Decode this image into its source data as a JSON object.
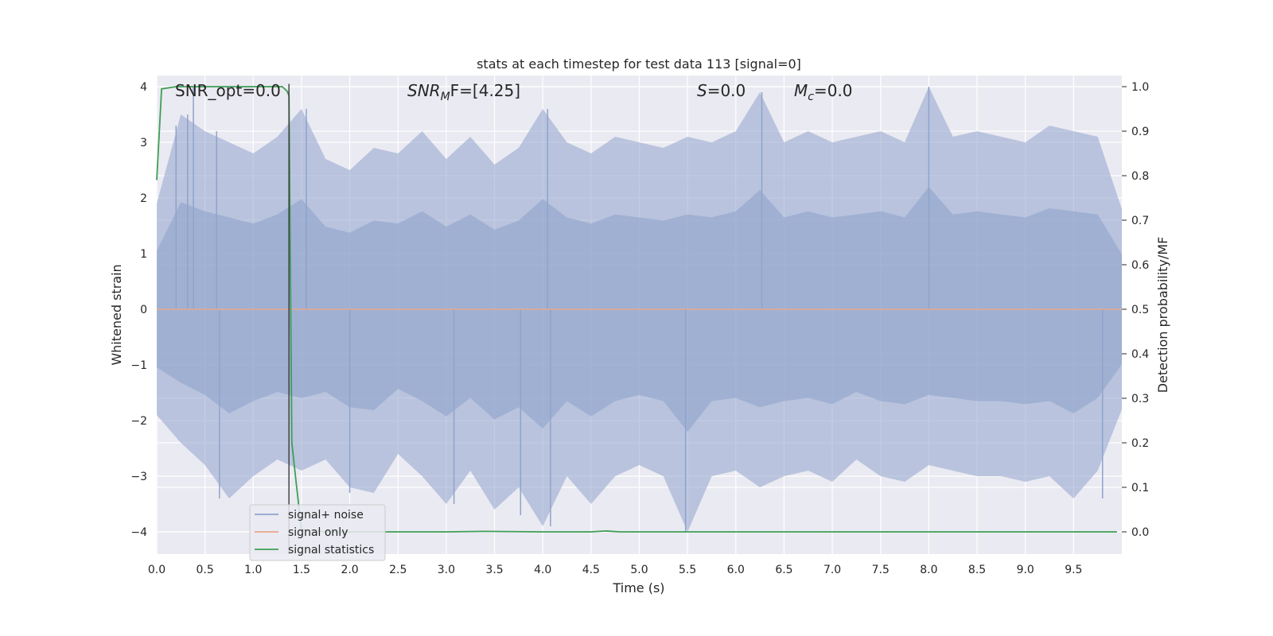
{
  "chart_data": {
    "type": "line",
    "title": "stats at each timestep for test data 113 [signal=0]",
    "xlabel": "Time (s)",
    "ylabel_left": "Whitened strain",
    "ylabel_right": "Detection probability/MF",
    "xlim": [
      0.0,
      10.0
    ],
    "ylim_left": [
      -4.4,
      4.2
    ],
    "ylim_right": [
      -0.05,
      1.025
    ],
    "x_ticks": [
      "0.0",
      "0.5",
      "1.0",
      "1.5",
      "2.0",
      "2.5",
      "3.0",
      "3.5",
      "4.0",
      "4.5",
      "5.0",
      "5.5",
      "6.0",
      "6.5",
      "7.0",
      "7.5",
      "8.0",
      "8.5",
      "9.0",
      "9.5"
    ],
    "y_left_ticks": [
      "4",
      "3",
      "2",
      "1",
      "0",
      "−1",
      "−2",
      "−3",
      "−4"
    ],
    "y_right_ticks": [
      "1.0",
      "0.9",
      "0.8",
      "0.7",
      "0.6",
      "0.5",
      "0.4",
      "0.3",
      "0.2",
      "0.1",
      "0.0"
    ],
    "grid": true,
    "legend_position": "lower-left",
    "annotations": {
      "snr_opt": "SNR_opt=0.0",
      "snr_mf_sym": "SNR",
      "snr_mf_sub": "M",
      "snr_mf_rest": "F=[4.25]",
      "s_sym": "S",
      "s_rest": "=0.0",
      "mc_sym": "M",
      "mc_sub": "c",
      "mc_rest": "=0.0"
    },
    "marker_line_x": 1.37,
    "series": [
      {
        "name": "signal+ noise",
        "color": "#8fa3cc",
        "axis": "left",
        "render": "band",
        "x": [
          0.0,
          0.25,
          0.5,
          0.75,
          1.0,
          1.25,
          1.5,
          1.75,
          2.0,
          2.25,
          2.5,
          2.75,
          3.0,
          3.25,
          3.5,
          3.75,
          4.0,
          4.25,
          4.5,
          4.75,
          5.0,
          5.25,
          5.5,
          5.75,
          6.0,
          6.25,
          6.5,
          6.75,
          7.0,
          7.25,
          7.5,
          7.75,
          8.0,
          8.25,
          8.5,
          8.75,
          9.0,
          9.25,
          9.5,
          9.75,
          10.0
        ],
        "y_upper": [
          1.9,
          3.5,
          3.2,
          3.0,
          2.8,
          3.1,
          3.6,
          2.7,
          2.5,
          2.9,
          2.8,
          3.2,
          2.7,
          3.1,
          2.6,
          2.9,
          3.6,
          3.0,
          2.8,
          3.1,
          3.0,
          2.9,
          3.1,
          3.0,
          3.2,
          3.9,
          3.0,
          3.2,
          3.0,
          3.1,
          3.2,
          3.0,
          4.0,
          3.1,
          3.2,
          3.1,
          3.0,
          3.3,
          3.2,
          3.1,
          1.8
        ],
        "y_lower": [
          -1.9,
          -2.4,
          -2.8,
          -3.4,
          -3.0,
          -2.7,
          -2.9,
          -2.7,
          -3.2,
          -3.3,
          -2.6,
          -3.0,
          -3.5,
          -2.9,
          -3.6,
          -3.2,
          -3.9,
          -3.0,
          -3.5,
          -3.0,
          -2.8,
          -3.0,
          -4.0,
          -3.0,
          -2.9,
          -3.2,
          -3.0,
          -2.9,
          -3.1,
          -2.7,
          -3.0,
          -3.1,
          -2.8,
          -2.9,
          -3.0,
          -3.0,
          -3.1,
          -3.0,
          -3.4,
          -2.9,
          -1.8
        ],
        "spikes": [
          {
            "x": 0.2,
            "y": 3.3
          },
          {
            "x": 0.32,
            "y": 3.5
          },
          {
            "x": 0.38,
            "y": 4.0
          },
          {
            "x": 0.62,
            "y": 3.2
          },
          {
            "x": 1.55,
            "y": 3.6
          },
          {
            "x": 4.05,
            "y": 3.6
          },
          {
            "x": 6.27,
            "y": 3.9
          },
          {
            "x": 8.0,
            "y": 4.0
          },
          {
            "x": 0.65,
            "y": -3.4
          },
          {
            "x": 3.77,
            "y": -3.7
          },
          {
            "x": 4.08,
            "y": -3.9
          },
          {
            "x": 5.48,
            "y": -4.0
          },
          {
            "x": 9.8,
            "y": -3.4
          },
          {
            "x": 2.0,
            "y": -3.3
          },
          {
            "x": 3.08,
            "y": -3.5
          }
        ]
      },
      {
        "name": "signal only",
        "color": "#e8a889",
        "axis": "left",
        "render": "line",
        "x": [
          0.0,
          10.0
        ],
        "y": [
          0.0,
          0.0
        ]
      },
      {
        "name": "signal statistics",
        "color": "#3f9e55",
        "axis": "right",
        "render": "line",
        "x": [
          0.0,
          0.05,
          0.2,
          0.5,
          1.0,
          1.3,
          1.35,
          1.37,
          1.4,
          1.45,
          1.5,
          1.75,
          2.0,
          3.0,
          3.4,
          4.0,
          4.5,
          4.65,
          4.8,
          5.0,
          6.0,
          7.0,
          8.0,
          9.0,
          9.95
        ],
        "y": [
          0.79,
          0.995,
          1.0,
          1.0,
          1.0,
          1.0,
          0.99,
          0.98,
          0.2,
          0.1,
          0.005,
          0.0,
          0.0,
          0.0,
          0.001,
          0.0,
          0.0,
          0.002,
          0.0,
          0.0,
          0.0,
          0.0,
          0.0,
          0.0,
          0.0
        ]
      }
    ]
  }
}
